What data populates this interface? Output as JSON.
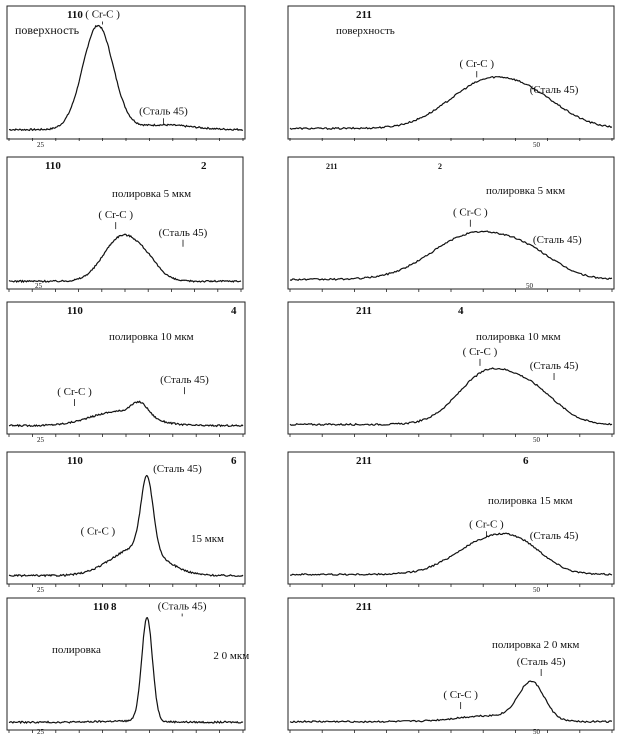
{
  "figure": {
    "description_free": true,
    "colors": {
      "line": "#111111",
      "axis": "#222222",
      "background": "#ffffff"
    }
  },
  "chart_data": [
    {
      "type": "line",
      "id": "p1",
      "peak_label": "110",
      "title": "поверхность",
      "sample_no": "",
      "x_tick": "25",
      "xlim": [
        0,
        100
      ],
      "ylim": [
        0,
        100
      ],
      "series": [
        {
          "name": "Cr-C",
          "center": 38,
          "width": 6.5,
          "height": 88
        },
        {
          "name": "Сталь 45",
          "center": 66,
          "width": 12,
          "height": 4
        }
      ],
      "baseline": 2,
      "annotations": [
        {
          "text": "( Cr-C )",
          "x": 40,
          "y": 97
        },
        {
          "text": "(Сталь 45)",
          "x": 66,
          "y": 15
        }
      ]
    },
    {
      "type": "line",
      "id": "p2",
      "peak_label": "211",
      "title": "поверхность",
      "sample_no": "",
      "x_tick": "50",
      "xlim": [
        0,
        100
      ],
      "ylim": [
        0,
        100
      ],
      "series": [
        {
          "name": "Cr-C",
          "center": 61,
          "width": 12,
          "height": 38
        },
        {
          "name": "Сталь 45",
          "center": 77,
          "width": 10,
          "height": 16
        }
      ],
      "baseline": 3,
      "annotations": [
        {
          "text": "( Cr-C )",
          "x": 58,
          "y": 55
        },
        {
          "text": "(Сталь 45)",
          "x": 82,
          "y": 33
        }
      ]
    },
    {
      "type": "line",
      "id": "p3",
      "peak_label": "110",
      "title": "полировка  5 мкм",
      "sample_no": "2",
      "x_tick": "25",
      "xlim": [
        0,
        100
      ],
      "ylim": [
        0,
        100
      ],
      "series": [
        {
          "name": "Cr-C",
          "center": 48,
          "width": 7.5,
          "height": 36
        },
        {
          "name": "Сталь 45",
          "center": 59,
          "width": 6,
          "height": 14
        }
      ],
      "baseline": 1.5,
      "annotations": [
        {
          "text": "( Cr-C )",
          "x": 46,
          "y": 55
        },
        {
          "text": "(Сталь 45)",
          "x": 75,
          "y": 40
        }
      ]
    },
    {
      "type": "line",
      "id": "p4",
      "peak_label": "211",
      "title": "полировка  5 мкм",
      "sample_no": "2",
      "x_tick": "50",
      "xlim": [
        0,
        100
      ],
      "ylim": [
        0,
        100
      ],
      "series": [
        {
          "name": "Cr-C",
          "center": 57,
          "width": 13,
          "height": 38
        },
        {
          "name": "Сталь 45",
          "center": 75,
          "width": 9,
          "height": 14
        }
      ],
      "baseline": 3,
      "annotations": [
        {
          "text": "( Cr-C )",
          "x": 56,
          "y": 57
        },
        {
          "text": "(Сталь 45)",
          "x": 83,
          "y": 34
        }
      ]
    },
    {
      "type": "line",
      "id": "p5",
      "peak_label": "110",
      "title": "полировка 10 мкм",
      "sample_no": "4",
      "x_tick": "25",
      "xlim": [
        0,
        100
      ],
      "ylim": [
        0,
        100
      ],
      "series": [
        {
          "name": "Cr-C",
          "center": 47,
          "width": 12,
          "height": 12
        },
        {
          "name": "Сталь 45",
          "center": 56,
          "width": 3.5,
          "height": 11
        }
      ],
      "baseline": 2,
      "annotations": [
        {
          "text": "( Cr-C )",
          "x": 28,
          "y": 28
        },
        {
          "text": "(Сталь 45)",
          "x": 75,
          "y": 38
        }
      ]
    },
    {
      "type": "line",
      "id": "p6",
      "peak_label": "211",
      "title": "полировка 10 мкм",
      "sample_no": "4",
      "x_tick": "50",
      "xlim": [
        0,
        100
      ],
      "ylim": [
        0,
        100
      ],
      "series": [
        {
          "name": "Cr-C",
          "center": 61,
          "width": 9,
          "height": 42
        },
        {
          "name": "Сталь 45",
          "center": 76,
          "width": 8,
          "height": 24
        }
      ],
      "baseline": 3,
      "annotations": [
        {
          "text": "( Cr-C )",
          "x": 59,
          "y": 62
        },
        {
          "text": "(Сталь 45)",
          "x": 82,
          "y": 50
        }
      ]
    },
    {
      "type": "line",
      "id": "p7",
      "peak_label": "110",
      "title": "15 мкм",
      "sample_no": "6",
      "x_tick": "25",
      "xlim": [
        0,
        100
      ],
      "ylim": [
        0,
        100
      ],
      "series": [
        {
          "name": "Cr-C",
          "center": 55,
          "width": 11,
          "height": 24
        },
        {
          "name": "Сталь 45",
          "center": 59,
          "width": 2.6,
          "height": 62
        }
      ],
      "baseline": 2,
      "annotations": [
        {
          "text": "( Cr-C )",
          "x": 38,
          "y": 37
        },
        {
          "text": "(Сталь 45)",
          "x": 72,
          "y": 90
        }
      ]
    },
    {
      "type": "line",
      "id": "p8",
      "peak_label": "211",
      "title": "полировка  15 мкм",
      "sample_no": "6",
      "x_tick": "50",
      "xlim": [
        0,
        100
      ],
      "ylim": [
        0,
        100
      ],
      "series": [
        {
          "name": "Cr-C",
          "center": 60,
          "width": 10,
          "height": 25
        },
        {
          "name": "Сталь 45",
          "center": 72,
          "width": 8,
          "height": 18
        }
      ],
      "baseline": 3,
      "annotations": [
        {
          "text": "( Cr-C )",
          "x": 61,
          "y": 43
        },
        {
          "text": "(Сталь 45)",
          "x": 82,
          "y": 33
        }
      ]
    },
    {
      "type": "line",
      "id": "p9",
      "peak_label": "110",
      "title": "полировка",
      "sample_no": "8",
      "x_tick": "25",
      "xlim": [
        0,
        100
      ],
      "ylim": [
        0,
        100
      ],
      "series": [
        {
          "name": "Cr-C",
          "center": 52,
          "width": 12,
          "height": 1
        },
        {
          "name": "Сталь 45",
          "center": 59,
          "width": 2.3,
          "height": 88
        }
      ],
      "baseline": 1.5,
      "annotations": [
        {
          "text": "(Сталь 45)",
          "x": 74,
          "y": 97
        },
        {
          "text": "2 0 мкм",
          "x": 95,
          "y": 55
        }
      ]
    },
    {
      "type": "line",
      "id": "p10",
      "peak_label": "211",
      "title": "полировка  2 0 мкм",
      "sample_no": "",
      "x_tick": "50",
      "xlim": [
        0,
        100
      ],
      "ylim": [
        0,
        100
      ],
      "series": [
        {
          "name": "Cr-C",
          "center": 62,
          "width": 10,
          "height": 5
        },
        {
          "name": "Сталь 45",
          "center": 75,
          "width": 4,
          "height": 32
        }
      ],
      "baseline": 2,
      "annotations": [
        {
          "text": "( Cr-C )",
          "x": 53,
          "y": 22
        },
        {
          "text": "(Сталь 45)",
          "x": 78,
          "y": 50
        }
      ]
    }
  ]
}
